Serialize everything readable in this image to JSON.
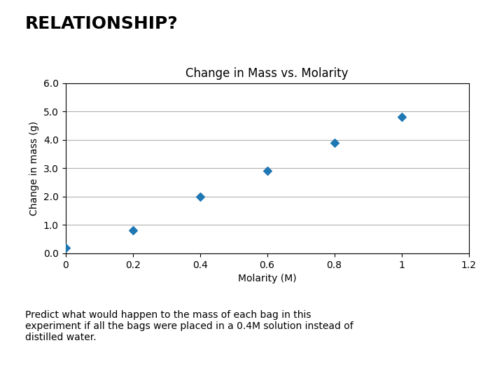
{
  "chart_data": {
    "type": "scatter",
    "title": "Change in Mass vs. Molarity",
    "xlabel": "Molarity (M)",
    "ylabel": "Change in mass (g)",
    "x": [
      0.0,
      0.2,
      0.4,
      0.6,
      0.8,
      1.0
    ],
    "values": [
      0.2,
      0.8,
      2.0,
      2.9,
      3.9,
      4.8
    ],
    "marker": "diamond",
    "xlim": [
      0,
      1.2
    ],
    "ylim": [
      0.0,
      6.0
    ],
    "xticks": [
      0,
      0.2,
      0.4,
      0.6,
      0.8,
      {
        "value": 1.0,
        "label": "1"
      },
      1.2
    ],
    "yticks": [
      0.0,
      1.0,
      2.0,
      3.0,
      4.0,
      5.0,
      6.0
    ],
    "grid": "y",
    "annotations": [
      "RELATIONSHIP?",
      "Predict what would happen to the mass of each bag in this\nexperiment if all the bags were placed in a 0.4M solution instead of\ndistilled water."
    ]
  }
}
